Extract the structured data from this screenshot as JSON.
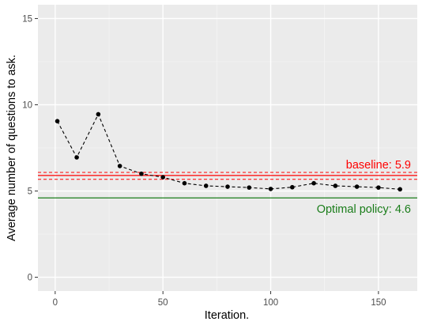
{
  "chart_data": {
    "type": "line",
    "title": "",
    "xlabel": "Iteration.",
    "ylabel": "Average number of questions to ask.",
    "xlim": [
      -8,
      168
    ],
    "ylim": [
      -0.8,
      15.8
    ],
    "x_ticks": [
      0,
      50,
      100,
      150
    ],
    "y_ticks": [
      0,
      5,
      10,
      15
    ],
    "grid": true,
    "series": [
      {
        "points": [
          [
            1,
            9.05
          ],
          [
            10,
            6.95
          ],
          [
            20,
            9.45
          ],
          [
            30,
            6.45
          ],
          [
            40,
            6.0
          ],
          [
            50,
            5.8
          ],
          [
            60,
            5.45
          ],
          [
            70,
            5.3
          ],
          [
            80,
            5.25
          ],
          [
            90,
            5.2
          ],
          [
            100,
            5.12
          ],
          [
            110,
            5.22
          ],
          [
            120,
            5.45
          ],
          [
            130,
            5.3
          ],
          [
            140,
            5.25
          ],
          [
            150,
            5.2
          ],
          [
            160,
            5.1
          ]
        ],
        "color": "#000000",
        "line_style": "dashed"
      }
    ],
    "reference_lines": [
      {
        "label": "baseline: 5.9",
        "value": 5.9,
        "band": [
          5.68,
          6.08
        ],
        "color": "#ff0000",
        "style": "dashed-band"
      },
      {
        "label": "Optimal policy: 4.6",
        "value": 4.6,
        "color": "#1a7d1a",
        "style": "solid"
      }
    ],
    "colors": {
      "panel_background": "#ebebeb",
      "grid_major": "#ffffff",
      "grid_minor": "#f5f5f5",
      "axis_text": "#4d4d4d",
      "title_text": "#000000"
    }
  }
}
